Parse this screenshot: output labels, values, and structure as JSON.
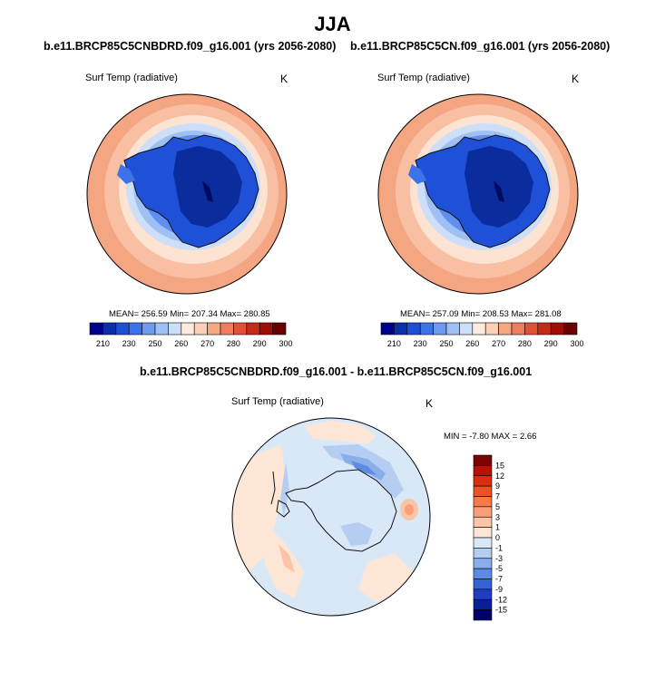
{
  "title": "JJA",
  "colors": {
    "ocean_warm": "#f4a582",
    "ice_edge": "#dbeaf7",
    "continent_blue": "#1f50d8",
    "interior_dark": "#0a2c9c",
    "diff_background": "#d6e6f5",
    "diff_warm": "#fcd9c4",
    "diff_cool": "#7fa8e8"
  },
  "chart_data": [
    {
      "type": "heatmap",
      "projection": "south-polar-stereographic",
      "title": "b.e11.BRCP85C5CNBDRD.f09_g16.001 (yrs 2056-2080)",
      "variable": "Surf Temp (radiative)",
      "units": "K",
      "stats": "MEAN= 256.59  Min= 207.34  Max= 280.85",
      "mean": 256.59,
      "min": 207.34,
      "max": 280.85,
      "colorbar": {
        "orientation": "horizontal",
        "levels": [
          210,
          230,
          250,
          260,
          270,
          280,
          290,
          300
        ],
        "colors": [
          "#00008b",
          "#0a2fa8",
          "#1c4fd6",
          "#3d73ea",
          "#6e9bf0",
          "#9fc0f5",
          "#cddff8",
          "#fbeadd",
          "#fcd0b6",
          "#f6a882",
          "#ee7e5b",
          "#e05237",
          "#c52a17",
          "#9e0d06",
          "#6b0000"
        ]
      }
    },
    {
      "type": "heatmap",
      "projection": "south-polar-stereographic",
      "title": "b.e11.BRCP85C5CN.f09_g16.001 (yrs 2056-2080)",
      "variable": "Surf Temp (radiative)",
      "units": "K",
      "stats": "MEAN= 257.09  Min= 208.53  Max= 281.08",
      "mean": 257.09,
      "min": 208.53,
      "max": 281.08,
      "colorbar": {
        "orientation": "horizontal",
        "levels": [
          210,
          230,
          250,
          260,
          270,
          280,
          290,
          300
        ],
        "colors": [
          "#00008b",
          "#0a2fa8",
          "#1c4fd6",
          "#3d73ea",
          "#6e9bf0",
          "#9fc0f5",
          "#cddff8",
          "#fbeadd",
          "#fcd0b6",
          "#f6a882",
          "#ee7e5b",
          "#e05237",
          "#c52a17",
          "#9e0d06",
          "#6b0000"
        ]
      }
    },
    {
      "type": "heatmap",
      "projection": "south-polar-stereographic",
      "title": "b.e11.BRCP85C5CNBDRD.f09_g16.001 - b.e11.BRCP85C5CN.f09_g16.001",
      "variable": "Surf Temp (radiative)",
      "units": "K",
      "stats": "MIN =  -7.80 MAX =   2.66",
      "min": -7.8,
      "max": 2.66,
      "colorbar": {
        "orientation": "vertical",
        "levels": [
          15,
          12,
          9,
          7,
          5,
          3,
          1,
          0,
          -1,
          -3,
          -5,
          -7,
          -9,
          -12,
          -15
        ],
        "colors": [
          "#7a0403",
          "#b31205",
          "#dc2e0e",
          "#ee5124",
          "#f57a48",
          "#f9a07a",
          "#fbc4a6",
          "#fde6d6",
          "#d9e8f7",
          "#b5cdf1",
          "#8aaeea",
          "#5d8be3",
          "#3563d6",
          "#1d3fbf",
          "#0a1f96",
          "#00006b"
        ]
      }
    }
  ]
}
